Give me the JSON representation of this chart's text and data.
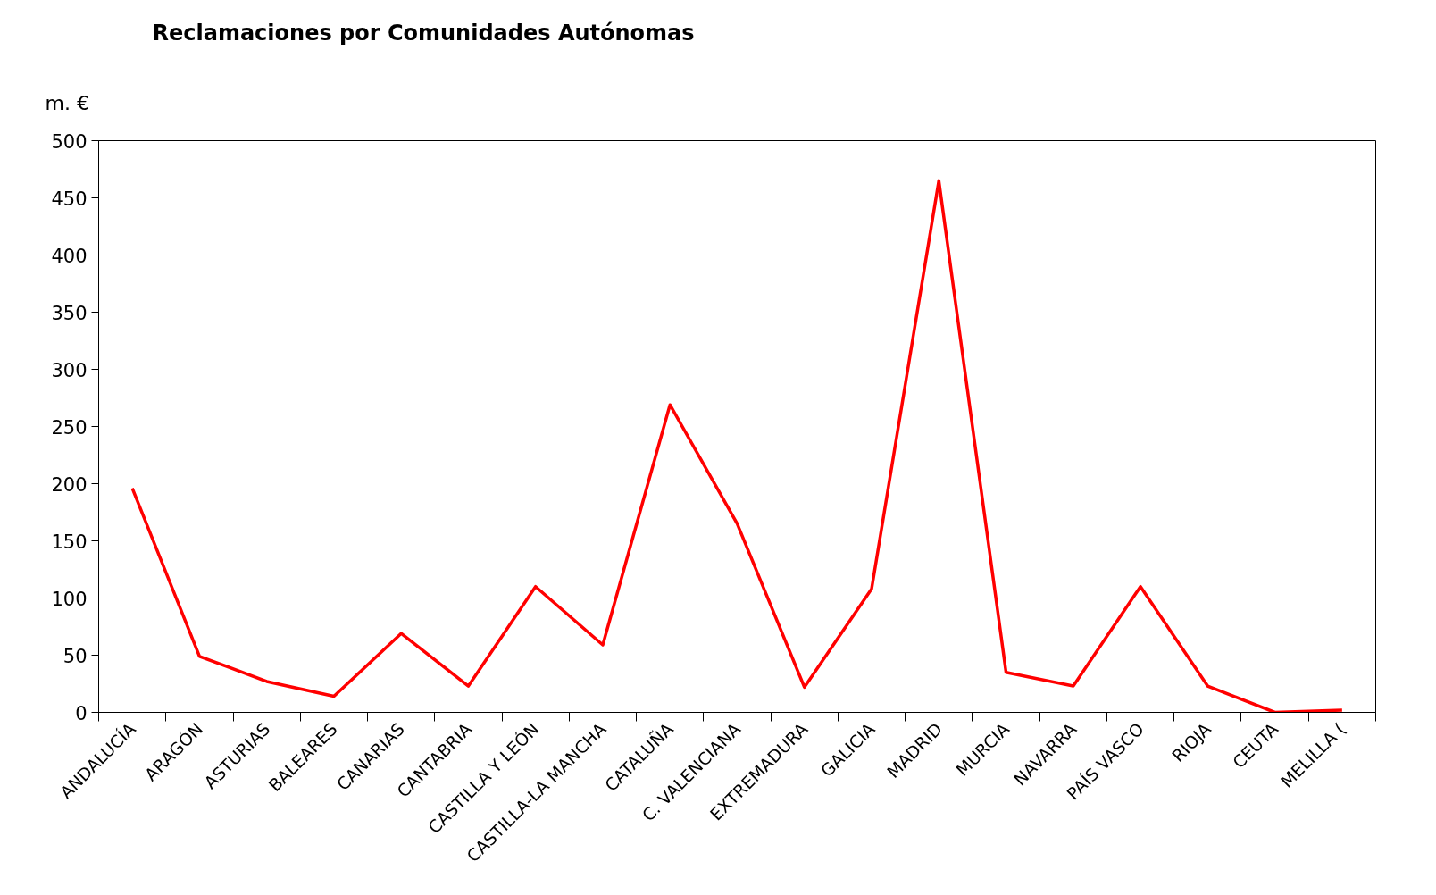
{
  "chart_data": {
    "type": "line",
    "title": "Reclamaciones por Comunidades Autónomas",
    "ylabel": "m. €",
    "categories": [
      "ANDALUCÍA",
      "ARAGÓN",
      "ASTURIAS",
      "BALEARES",
      "CANARIAS",
      "CANTABRIA",
      "CASTILLA Y LEÓN",
      "CASTILLA-LA MANCHA",
      "CATALUÑA",
      "C. VALENCIANA",
      "EXTREMADURA",
      "GALICIA",
      "MADRID",
      "MURCIA",
      "NAVARRA",
      "PAÍS VASCO",
      "RIOJA",
      "CEUTA",
      "MELILLA ("
    ],
    "series": [
      {
        "color": "#ff0000",
        "values": [
          196,
          49,
          27,
          14,
          69,
          23,
          110,
          59,
          269,
          165,
          22,
          108,
          465,
          35,
          23,
          110,
          23,
          0,
          2
        ]
      }
    ],
    "ylim": [
      0,
      500
    ],
    "yticks": [
      0,
      50,
      100,
      150,
      200,
      250,
      300,
      350,
      400,
      450,
      500
    ],
    "grid": false,
    "marker": "none",
    "line_style": "solid"
  }
}
